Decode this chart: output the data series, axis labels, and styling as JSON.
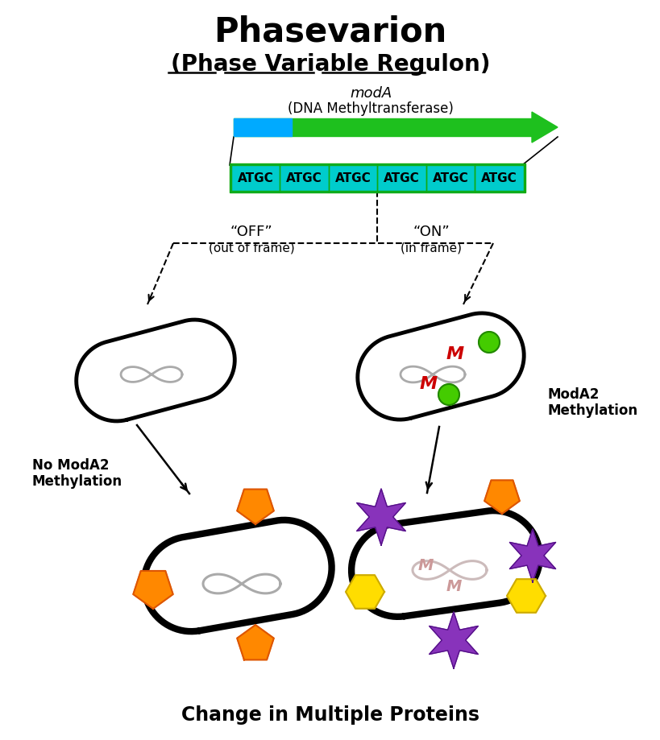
{
  "title": "Phasevarion",
  "subtitle": "(Phase Variable Regulon)",
  "moda_label": "modA",
  "moda_sublabel": "(DNA Methyltransferase)",
  "atgc_sequence": [
    "ATGC",
    "ATGC",
    "ATGC",
    "ATGC",
    "ATGC",
    "ATGC"
  ],
  "arrow_green": "#1ec01e",
  "arrow_blue_highlight": "#00aaff",
  "atgc_bg": "#00cccc",
  "atgc_border": "#11aa11",
  "off_label": "“OFF”",
  "off_sublabel": "(out of frame)",
  "on_label": "“ON”",
  "on_sublabel": "(in frame)",
  "no_moda_label": "No ModA2\nMethylation",
  "moda_methylation_label": "ModA2\nMethylation",
  "bottom_label": "Change in Multiple Proteins",
  "bg_color": "#ffffff",
  "dna_color": "#aaaaaa",
  "dna_color2": "#ccbbbb",
  "orange_color": "#ff8800",
  "orange_dark": "#dd5500",
  "purple_color": "#8833bb",
  "purple_dark": "#551188",
  "yellow_color": "#ffdd00",
  "yellow_dark": "#ccaa00",
  "green_dot": "#44cc00",
  "red_M": "#cc0000",
  "pink_M": "#cc9999"
}
